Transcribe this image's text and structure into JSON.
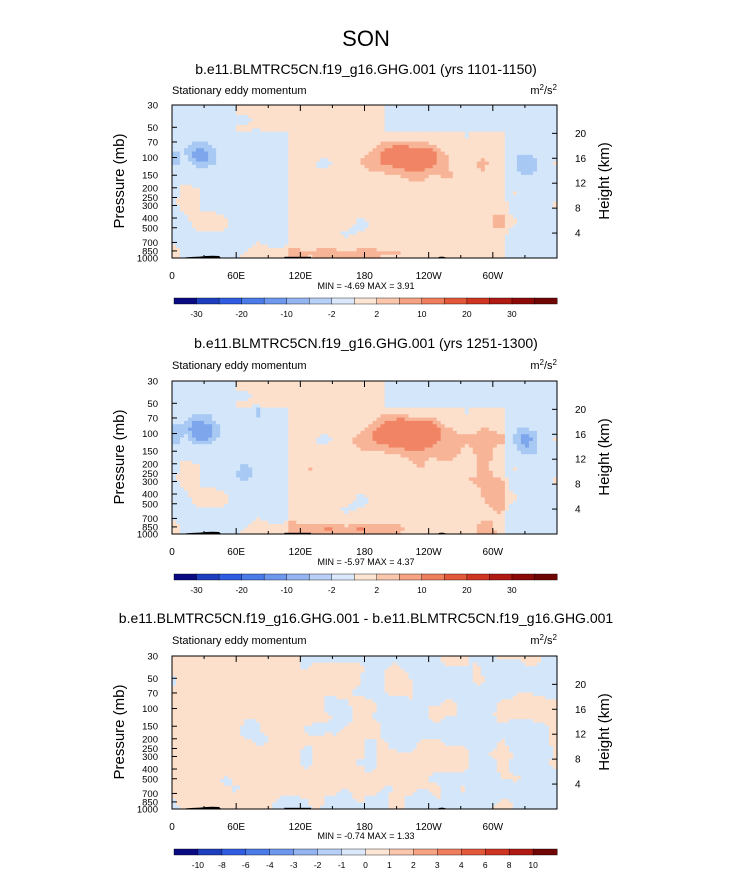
{
  "page_title": "SON",
  "colors": {
    "blue_light": "#d4e6fa",
    "blue_mid": "#a7c9f3",
    "blue_strong": "#7ea6ec",
    "orange_light": "#fce0cc",
    "orange_mid": "#f8b497",
    "orange_strong": "#f08464",
    "terrain": "#000000"
  },
  "chart_data": [
    {
      "type": "heatmap",
      "title": "b.e11.BLMTRC5CN.f19_g16.GHG.001 (yrs 1101-1150)",
      "left_label": "Stationary eddy momentum",
      "units": "m²/s²",
      "ylabel": "Pressure (mb)",
      "ylabel_right": "Height (km)",
      "x_ticks": [
        "0",
        "60E",
        "120E",
        "180",
        "120W",
        "60W"
      ],
      "x_tick_values": [
        0,
        60,
        120,
        180,
        240,
        300
      ],
      "xlim": [
        0,
        360
      ],
      "y_ticks": [
        "30",
        "50",
        "70",
        "100",
        "150",
        "200",
        "250",
        "300",
        "400",
        "500",
        "700",
        "850",
        "1000"
      ],
      "y_tick_values": [
        30,
        50,
        70,
        100,
        150,
        200,
        250,
        300,
        400,
        500,
        700,
        850,
        1000
      ],
      "ylim": [
        30,
        1000
      ],
      "height_ticks": [
        "4",
        "8",
        "12",
        "16",
        "20"
      ],
      "height_tick_values": [
        4,
        8,
        12,
        16,
        20
      ],
      "stats_text": "MIN = -4.69  MAX =  3.91",
      "min": -4.69,
      "max": 3.91,
      "colorbar_labels": [
        "-30",
        "-20",
        "-10",
        "-2",
        "2",
        "10",
        "20",
        "30"
      ],
      "colorbar_colors": [
        "#0a0a82",
        "#1d3fbf",
        "#2f5ce0",
        "#4a7be8",
        "#6e98ee",
        "#94b4f2",
        "#b8cff7",
        "#dbe8fb",
        "#fde5d4",
        "#fbc7ac",
        "#f6a283",
        "#ef7e5c",
        "#e4583a",
        "#cf3520",
        "#b01a12",
        "#8b0a08",
        "#700505"
      ],
      "field": "p1"
    },
    {
      "type": "heatmap",
      "title": "b.e11.BLMTRC5CN.f19_g16.GHG.001 (yrs 1251-1300)",
      "left_label": "Stationary eddy momentum",
      "units": "m²/s²",
      "ylabel": "Pressure (mb)",
      "ylabel_right": "Height (km)",
      "x_ticks": [
        "0",
        "60E",
        "120E",
        "180",
        "120W",
        "60W"
      ],
      "x_tick_values": [
        0,
        60,
        120,
        180,
        240,
        300
      ],
      "xlim": [
        0,
        360
      ],
      "y_ticks": [
        "30",
        "50",
        "70",
        "100",
        "150",
        "200",
        "250",
        "300",
        "400",
        "500",
        "700",
        "850",
        "1000"
      ],
      "y_tick_values": [
        30,
        50,
        70,
        100,
        150,
        200,
        250,
        300,
        400,
        500,
        700,
        850,
        1000
      ],
      "ylim": [
        30,
        1000
      ],
      "height_ticks": [
        "4",
        "8",
        "12",
        "16",
        "20"
      ],
      "height_tick_values": [
        4,
        8,
        12,
        16,
        20
      ],
      "stats_text": "MIN = -5.97  MAX =  4.37",
      "min": -5.97,
      "max": 4.37,
      "colorbar_labels": [
        "-30",
        "-20",
        "-10",
        "-2",
        "2",
        "10",
        "20",
        "30"
      ],
      "colorbar_colors": [
        "#0a0a82",
        "#1d3fbf",
        "#2f5ce0",
        "#4a7be8",
        "#6e98ee",
        "#94b4f2",
        "#b8cff7",
        "#dbe8fb",
        "#fde5d4",
        "#fbc7ac",
        "#f6a283",
        "#ef7e5c",
        "#e4583a",
        "#cf3520",
        "#b01a12",
        "#8b0a08",
        "#700505"
      ],
      "field": "p1"
    },
    {
      "type": "heatmap",
      "title": "b.e11.BLMTRC5CN.f19_g16.GHG.001 - b.e11.BLMTRC5CN.f19_g16.GHG.001",
      "left_label": "Stationary eddy momentum",
      "units": "m²/s²",
      "ylabel": "Pressure (mb)",
      "ylabel_right": "Height (km)",
      "x_ticks": [
        "0",
        "60E",
        "120E",
        "180",
        "120W",
        "60W"
      ],
      "x_tick_values": [
        0,
        60,
        120,
        180,
        240,
        300
      ],
      "xlim": [
        0,
        360
      ],
      "y_ticks": [
        "30",
        "50",
        "70",
        "100",
        "150",
        "200",
        "250",
        "300",
        "400",
        "500",
        "700",
        "850",
        "1000"
      ],
      "y_tick_values": [
        30,
        50,
        70,
        100,
        150,
        200,
        250,
        300,
        400,
        500,
        700,
        850,
        1000
      ],
      "ylim": [
        30,
        1000
      ],
      "height_ticks": [
        "4",
        "8",
        "12",
        "16",
        "20"
      ],
      "height_tick_values": [
        4,
        8,
        12,
        16,
        20
      ],
      "stats_text": "MIN = -0.74  MAX =  1.33",
      "min": -0.74,
      "max": 1.33,
      "colorbar_labels": [
        "-10",
        "-8",
        "-6",
        "-4",
        "-3",
        "-2",
        "-1",
        "0",
        "1",
        "2",
        "3",
        "4",
        "6",
        "8",
        "10"
      ],
      "colorbar_colors": [
        "#0a0a82",
        "#1d3fbf",
        "#2f5ce0",
        "#4a7be8",
        "#6e98ee",
        "#94b4f2",
        "#b8cff7",
        "#dbe8fb",
        "#fde5d4",
        "#fbc7ac",
        "#f6a283",
        "#ef7e5c",
        "#e4583a",
        "#cf3520",
        "#b01a12",
        "#700505"
      ],
      "field": "diff"
    }
  ]
}
